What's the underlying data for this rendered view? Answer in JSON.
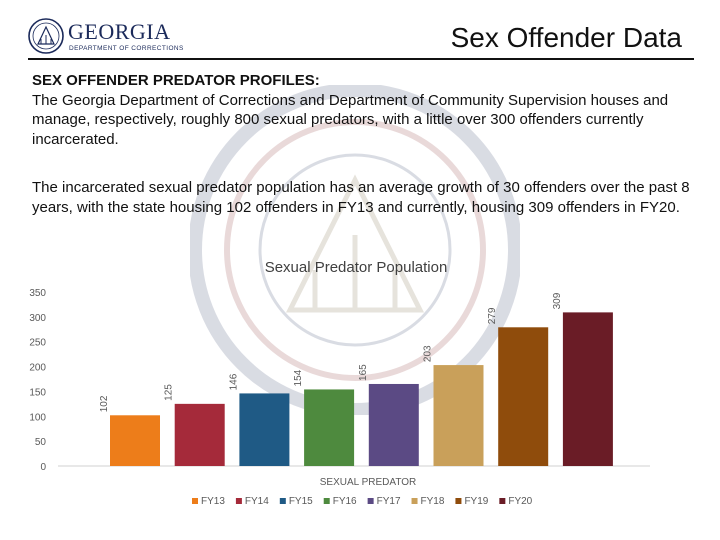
{
  "header": {
    "logo_name": "GEORGIA",
    "logo_subtitle": "DEPARTMENT OF CORRECTIONS",
    "title": "Sex Offender Data"
  },
  "body": {
    "paragraph1_lead": "SEX OFFENDER PREDATOR PROFILES:",
    "paragraph1_text": "The Georgia Department of Corrections and Department of Community Supervision houses and manage, respectively, roughly 800 sexual predators, with a little over 300 offenders currently incarcerated.",
    "paragraph2_text": "The incarcerated sexual predator population has an average growth of 30 offenders over the past 8 years, with the state housing 102 offenders in FY13 and currently, housing 309 offenders in FY20."
  },
  "colors": {
    "logo_blue": "#1b2a5a",
    "axis_text": "#595959",
    "gridline": "#d9d9d9"
  },
  "chart_data": {
    "type": "bar",
    "title": "Sexual Predator Population",
    "xlabel": "SEXUAL PREDATOR",
    "ylabel": "",
    "categories": [
      "SEXUAL PREDATOR"
    ],
    "ylim": [
      0,
      350
    ],
    "yticks": [
      0,
      50,
      100,
      150,
      200,
      250,
      300,
      350
    ],
    "grid": false,
    "legend_position": "bottom",
    "series": [
      {
        "name": "FY13",
        "values": [
          102
        ],
        "color": "#ed7d1a"
      },
      {
        "name": "FY14",
        "values": [
          125
        ],
        "color": "#a52a3a"
      },
      {
        "name": "FY15",
        "values": [
          146
        ],
        "color": "#1f5a85"
      },
      {
        "name": "FY16",
        "values": [
          154
        ],
        "color": "#4e8a3e"
      },
      {
        "name": "FY17",
        "values": [
          165
        ],
        "color": "#5b4a84"
      },
      {
        "name": "FY18",
        "values": [
          203
        ],
        "color": "#c9a05a"
      },
      {
        "name": "FY19",
        "values": [
          279
        ],
        "color": "#8f4c0c"
      },
      {
        "name": "FY20",
        "values": [
          309
        ],
        "color": "#6a1c26"
      }
    ]
  }
}
